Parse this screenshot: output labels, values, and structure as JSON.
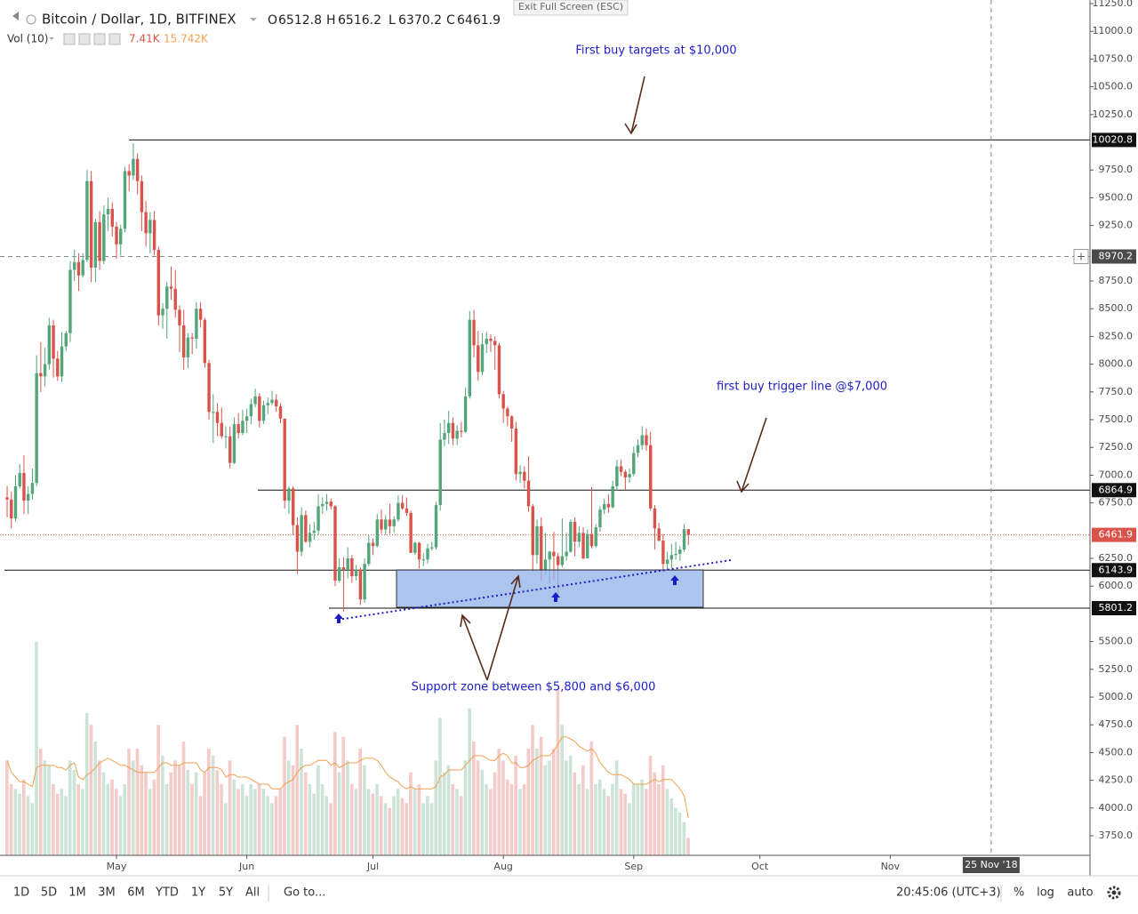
{
  "header": {
    "exit_button": "Exit Full Screen (ESC)",
    "o_label": "O",
    "h_label": "H",
    "l_label": "L",
    "c_label": "C",
    "volume_label": "Vol (10)",
    "volume_value_label": "7.41K",
    "volume_ma_label": "15.742K"
  },
  "annotations": {
    "targets": "First buy targets at $10,000",
    "trigger": "first buy trigger line @$7,000",
    "support": "Support zone between $5,800 and $6,000"
  },
  "toolbar": {
    "ranges": [
      "1D",
      "5D",
      "1M",
      "3M",
      "6M",
      "YTD",
      "1Y",
      "5Y",
      "All"
    ],
    "goto": "Go to...",
    "time": "20:45:06 (UTC+3)",
    "percent": "%",
    "log": "log",
    "auto": "auto"
  },
  "chart_data": {
    "type": "candlestick",
    "title": "Bitcoin / Dollar, 1D, BITFINEX",
    "up_color": "#53a57a",
    "down_color": "#d9534a",
    "xlim": [
      -1.7,
      257.5
    ],
    "xticks": [
      {
        "value": 26,
        "label": "May"
      },
      {
        "value": 57,
        "label": "Jun"
      },
      {
        "value": 87,
        "label": "Jul"
      },
      {
        "value": 118,
        "label": "Aug"
      },
      {
        "value": 149,
        "label": "Sep"
      },
      {
        "value": 179,
        "label": "Oct"
      },
      {
        "value": 210,
        "label": "Nov"
      }
    ],
    "ylim": [
      3574,
      11282
    ],
    "yticks": [
      {
        "value": 3750,
        "label": "3750.0"
      },
      {
        "value": 4000,
        "label": "4000.0"
      },
      {
        "value": 4250,
        "label": "4250.0"
      },
      {
        "value": 4500,
        "label": "4500.0"
      },
      {
        "value": 4750,
        "label": "4750.0"
      },
      {
        "value": 5000,
        "label": "5000.0"
      },
      {
        "value": 5250,
        "label": "5250.0"
      },
      {
        "value": 5500,
        "label": "5500.0"
      },
      {
        "value": 6000,
        "label": "6000.0"
      },
      {
        "value": 6250,
        "label": "6250.0"
      },
      {
        "value": 6750,
        "label": "6750.0"
      },
      {
        "value": 7000,
        "label": "7000.0"
      },
      {
        "value": 7250,
        "label": "7250.0"
      },
      {
        "value": 7500,
        "label": "7500.0"
      },
      {
        "value": 7750,
        "label": "7750.0"
      },
      {
        "value": 8000,
        "label": "8000.0"
      },
      {
        "value": 8250,
        "label": "8250.0"
      },
      {
        "value": 8500,
        "label": "8500.0"
      },
      {
        "value": 8750,
        "label": "8750.0"
      },
      {
        "value": 9250,
        "label": "9250.0"
      },
      {
        "value": 9500,
        "label": "9500.0"
      },
      {
        "value": 9750,
        "label": "9750.0"
      },
      {
        "value": 10250,
        "label": "10250.0"
      },
      {
        "value": 10500,
        "label": "10500.0"
      },
      {
        "value": 10750,
        "label": "10750.0"
      },
      {
        "value": 11000,
        "label": "11000.0"
      },
      {
        "value": 11250,
        "label": "11250.0"
      }
    ],
    "grid": false,
    "levels": [
      10020.8,
      6864.9,
      6143.9,
      5801.2
    ],
    "crosshair": {
      "y": 8970.2,
      "x": {
        "value": 234,
        "label": "25 Nov '18"
      }
    },
    "series": [
      {
        "open": [
          6800,
          6780,
          6610,
          6900,
          7020,
          6770,
          6830,
          6930,
          7920,
          7890,
          8000,
          8350,
          8050,
          7890,
          8160,
          8280,
          8850,
          8920,
          8800,
          8940,
          9650,
          8870,
          9280,
          8930,
          9350,
          9400,
          9240,
          9080,
          9220,
          9740,
          9700,
          9850,
          9650,
          9370,
          9180,
          9300,
          9030,
          8440,
          8500,
          8700,
          8680,
          8490,
          8350,
          8060,
          8240,
          8230,
          8500,
          8400,
          8010,
          7570,
          7570,
          7470,
          7350,
          7350,
          7110,
          7460,
          7380,
          7490,
          7530,
          7640,
          7710,
          7490,
          7630,
          7650,
          7680,
          7620,
          7510,
          6770,
          6880,
          6550,
          6310,
          6640,
          6400,
          6480,
          6500,
          6720,
          6740,
          6760,
          6720,
          6050,
          6170,
          6150,
          6250,
          6090,
          6150,
          5880,
          6200,
          6390,
          6360,
          6600,
          6510,
          6600,
          6540,
          6600,
          6750,
          6700,
          6660,
          6300,
          6390,
          6240,
          6240,
          6340,
          6350,
          6730,
          7320,
          7380,
          7470,
          7330,
          7400,
          7390,
          7710,
          8400,
          8170,
          7930,
          8180,
          8230,
          8210,
          8170,
          7730,
          7600,
          7530,
          7420,
          7010,
          7030,
          6950,
          6720,
          6280,
          6540,
          6150,
          6240,
          6310,
          6270,
          6190,
          6270,
          6310,
          6580,
          6400,
          6480,
          6250,
          6470,
          6360,
          6530,
          6690,
          6740,
          6710,
          6900,
          7080,
          7030,
          6980,
          7010,
          7200,
          7270,
          7360,
          7270,
          6700,
          6520,
          6410,
          6200,
          6240,
          6280,
          6290,
          6330,
          6512.8
        ],
        "high": [
          6900,
          6850,
          7000,
          7100,
          7180,
          6900,
          7060,
          8080,
          8200,
          8150,
          8420,
          8400,
          8120,
          8290,
          8300,
          8930,
          9030,
          9000,
          9000,
          9750,
          9740,
          9310,
          9380,
          9430,
          9500,
          9460,
          9280,
          9260,
          9780,
          9800,
          9990,
          9900,
          9700,
          9470,
          9370,
          9380,
          9060,
          8550,
          8740,
          8880,
          8850,
          8530,
          8490,
          8280,
          8280,
          8560,
          8560,
          8420,
          8040,
          7730,
          7650,
          7610,
          7440,
          7440,
          7520,
          7560,
          7590,
          7600,
          7690,
          7780,
          7740,
          7670,
          7700,
          7760,
          7730,
          7650,
          7510,
          6900,
          6900,
          6620,
          6710,
          6680,
          6560,
          6580,
          6830,
          6800,
          6830,
          6790,
          6730,
          6250,
          6260,
          6350,
          6280,
          6190,
          6170,
          6250,
          6460,
          6430,
          6650,
          6690,
          6640,
          6740,
          6630,
          6820,
          6820,
          6800,
          6680,
          6400,
          6400,
          6300,
          6380,
          6400,
          6760,
          7470,
          7500,
          7580,
          7520,
          7450,
          7480,
          7790,
          8480,
          8490,
          8300,
          8280,
          8290,
          8270,
          8250,
          8190,
          7760,
          7620,
          7540,
          7480,
          7090,
          7080,
          7170,
          6740,
          6600,
          6620,
          6480,
          6320,
          6490,
          6300,
          6610,
          6480,
          6600,
          6620,
          6540,
          6530,
          6510,
          6890,
          6560,
          6720,
          6790,
          6830,
          6950,
          7140,
          7140,
          7050,
          7060,
          7260,
          7320,
          7440,
          7420,
          7390,
          6730,
          6570,
          6470,
          6310,
          6380,
          6400,
          6360,
          6560,
          6516.2
        ],
        "low": [
          6620,
          6520,
          6580,
          6880,
          6650,
          6650,
          6780,
          6900,
          7750,
          7800,
          7950,
          7880,
          7850,
          7840,
          8120,
          8200,
          8750,
          8660,
          8780,
          8920,
          8740,
          8740,
          8850,
          8900,
          9200,
          9150,
          8950,
          8980,
          9190,
          9560,
          9660,
          9530,
          9200,
          9060,
          9000,
          8980,
          8350,
          8320,
          8230,
          8580,
          8420,
          8110,
          7950,
          7960,
          8090,
          8140,
          8330,
          7970,
          7500,
          7290,
          7350,
          7330,
          7240,
          7060,
          7100,
          7330,
          7360,
          7380,
          7460,
          7610,
          7430,
          7460,
          7550,
          7630,
          7570,
          7470,
          6700,
          6650,
          6460,
          6110,
          6270,
          6390,
          6350,
          6420,
          6460,
          6650,
          6680,
          6690,
          6000,
          6030,
          5770,
          6070,
          6030,
          6050,
          5830,
          5850,
          6180,
          6280,
          6350,
          6470,
          6460,
          6470,
          6480,
          6580,
          6690,
          6630,
          6300,
          6280,
          6160,
          6180,
          6200,
          6320,
          6330,
          6680,
          7260,
          7280,
          7270,
          7270,
          7340,
          7380,
          7690,
          8060,
          7850,
          7900,
          8100,
          8110,
          7950,
          7690,
          7470,
          7440,
          7300,
          6950,
          6930,
          6880,
          6670,
          6130,
          6200,
          6050,
          6100,
          6020,
          6060,
          5880,
          6170,
          6230,
          6300,
          6270,
          6350,
          6240,
          6250,
          6340,
          6350,
          6490,
          6650,
          6660,
          6700,
          6860,
          6990,
          6870,
          6930,
          6990,
          7160,
          7230,
          7220,
          6680,
          6330,
          6400,
          6120,
          6150,
          6160,
          6240,
          6230,
          6310,
          6370.2
        ],
        "close": [
          6780,
          6610,
          6900,
          7020,
          6770,
          6830,
          6930,
          7920,
          7890,
          8000,
          8350,
          8050,
          7890,
          8160,
          8280,
          8850,
          8920,
          8800,
          8940,
          9650,
          8870,
          9280,
          8930,
          9350,
          9400,
          9240,
          9080,
          9220,
          9740,
          9700,
          9850,
          9650,
          9370,
          9180,
          9300,
          9030,
          8440,
          8500,
          8700,
          8680,
          8490,
          8350,
          8060,
          8240,
          8230,
          8500,
          8400,
          8010,
          7570,
          7570,
          7470,
          7350,
          7350,
          7110,
          7460,
          7380,
          7490,
          7530,
          7640,
          7710,
          7490,
          7630,
          7650,
          7680,
          7620,
          7510,
          6770,
          6880,
          6550,
          6310,
          6640,
          6400,
          6480,
          6500,
          6720,
          6740,
          6760,
          6720,
          6050,
          6170,
          6150,
          6250,
          6090,
          6150,
          5880,
          6200,
          6390,
          6360,
          6600,
          6510,
          6600,
          6540,
          6600,
          6750,
          6700,
          6660,
          6300,
          6390,
          6240,
          6240,
          6340,
          6350,
          6730,
          7320,
          7380,
          7470,
          7330,
          7400,
          7390,
          7710,
          8400,
          8170,
          7930,
          8180,
          8230,
          8210,
          8170,
          7730,
          7600,
          7530,
          7420,
          7010,
          7030,
          6950,
          6720,
          6280,
          6540,
          6150,
          6240,
          6310,
          6270,
          6190,
          6270,
          6310,
          6580,
          6400,
          6480,
          6250,
          6470,
          6360,
          6530,
          6690,
          6740,
          6710,
          6900,
          7080,
          7030,
          6980,
          7010,
          7200,
          7270,
          7360,
          7270,
          6700,
          6520,
          6410,
          6200,
          6240,
          6280,
          6290,
          6330,
          6512.8,
          6461.9
        ]
      }
    ],
    "volume": {
      "ylim": [
        0,
        90
      ],
      "ma_color": "#f0a050",
      "values": [
        40,
        30,
        28,
        26,
        32,
        25,
        22,
        90,
        45,
        40,
        38,
        30,
        26,
        28,
        25,
        40,
        36,
        30,
        28,
        60,
        55,
        48,
        40,
        35,
        30,
        32,
        28,
        25,
        30,
        45,
        40,
        45,
        38,
        35,
        28,
        32,
        55,
        42,
        30,
        35,
        40,
        38,
        48,
        36,
        30,
        35,
        25,
        35,
        45,
        42,
        36,
        30,
        22,
        40,
        32,
        28,
        30,
        25,
        30,
        28,
        30,
        28,
        25,
        22,
        25,
        28,
        50,
        40,
        38,
        55,
        45,
        35,
        30,
        26,
        38,
        30,
        25,
        22,
        52,
        35,
        50,
        40,
        30,
        28,
        45,
        38,
        28,
        26,
        30,
        25,
        22,
        20,
        25,
        28,
        24,
        22,
        35,
        28,
        30,
        22,
        25,
        22,
        40,
        58,
        35,
        38,
        30,
        28,
        25,
        40,
        62,
        48,
        40,
        36,
        30,
        28,
        35,
        45,
        40,
        32,
        30,
        42,
        28,
        30,
        45,
        55,
        45,
        50,
        38,
        40,
        45,
        70,
        55,
        40,
        42,
        35,
        30,
        38,
        28,
        48,
        30,
        32,
        28,
        25,
        30,
        40,
        28,
        26,
        22,
        30,
        30,
        32,
        28,
        42,
        35,
        30,
        38,
        28,
        24,
        20,
        18,
        14,
        7.41
      ],
      "ma": [
        40,
        35,
        33,
        31,
        31,
        30,
        29,
        37,
        38,
        38,
        38,
        38,
        37,
        37,
        36,
        38,
        39,
        33,
        32,
        34,
        35,
        37,
        39,
        40,
        41,
        40,
        39,
        38,
        38,
        37,
        36,
        35,
        35,
        35,
        35,
        35,
        37,
        39,
        39,
        38,
        38,
        38,
        39,
        39,
        39,
        39,
        36,
        35,
        37,
        37,
        37,
        36,
        33,
        34,
        34,
        33,
        33,
        33,
        32,
        31,
        30,
        30,
        30,
        28,
        28,
        28,
        30,
        31,
        32,
        35,
        37,
        38,
        38,
        39,
        40,
        40,
        40,
        38,
        39,
        37,
        38,
        39,
        39,
        39,
        40,
        41,
        41,
        41,
        40,
        38,
        35,
        33,
        32,
        31,
        29,
        28,
        29,
        28,
        28,
        28,
        28,
        28,
        29,
        33,
        34,
        36,
        36,
        36,
        36,
        38,
        40,
        42,
        42,
        42,
        41,
        40,
        40,
        42,
        43,
        42,
        39,
        39,
        37,
        37,
        38,
        40,
        41,
        42,
        42,
        42,
        44,
        47,
        50,
        50,
        49,
        48,
        46,
        45,
        44,
        45,
        43,
        39,
        37,
        35,
        34,
        34,
        34,
        33,
        32,
        30,
        30,
        30,
        30,
        31,
        32,
        31,
        32,
        32,
        32,
        30,
        28,
        25,
        15.742
      ]
    }
  }
}
